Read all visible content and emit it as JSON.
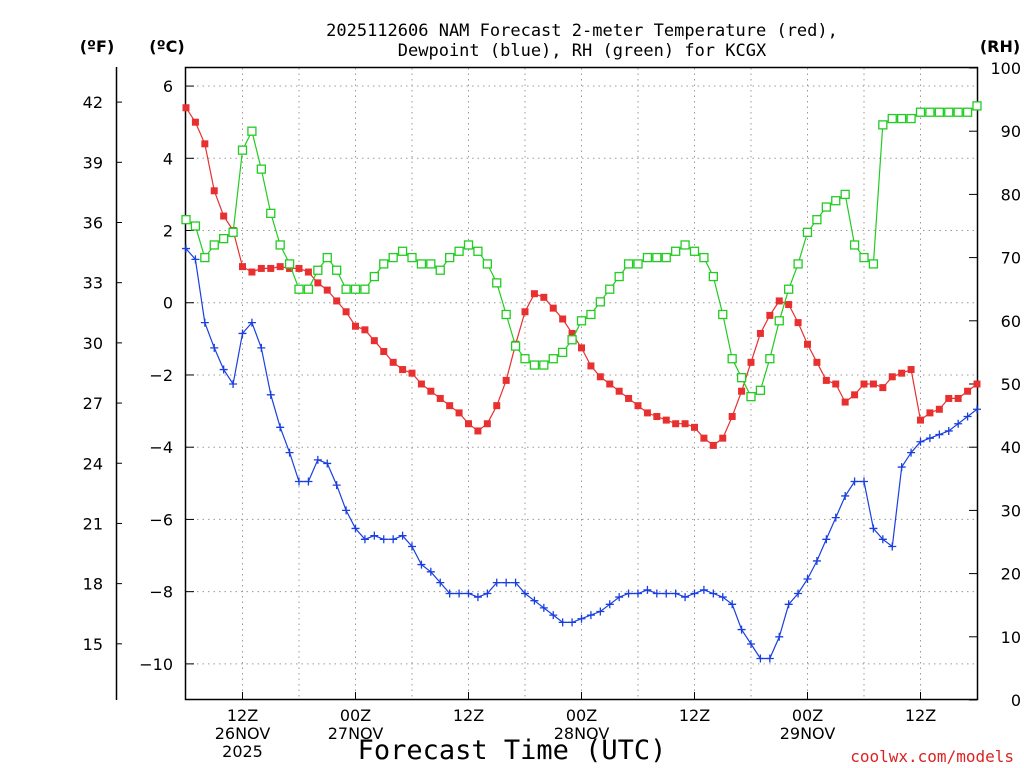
{
  "chart_data": {
    "type": "line",
    "title_line1": "2025112606 NAM Forecast 2-meter Temperature (red),",
    "title_line2": "Dewpoint (blue), RH (green) for KCGX",
    "xlabel": "Forecast Time (UTC)",
    "credit": "coolwx.com/models",
    "units": {
      "fahrenheit": "(ºF)",
      "celsius": "(ºC)",
      "rh": "(RH)"
    },
    "celsius_axis": {
      "ylim": [
        -11,
        6.5
      ],
      "ticks": [
        "6",
        "4",
        "2",
        "0",
        "−2",
        "−4",
        "−6",
        "−8",
        "−10"
      ]
    },
    "fahrenheit_axis": {
      "ticks": [
        "42",
        "39",
        "36",
        "33",
        "30",
        "27",
        "24",
        "21",
        "18",
        "15"
      ]
    },
    "rh_axis": {
      "ylim": [
        0,
        100
      ],
      "ticks": [
        "100",
        "90",
        "80",
        "70",
        "60",
        "50",
        "40",
        "30",
        "20",
        "10",
        "0"
      ]
    },
    "x_axis": {
      "start_hour": 6,
      "end_hour": 90,
      "ticks": [
        {
          "hour": 12,
          "lines": [
            "12Z",
            "26NOV",
            "2025"
          ]
        },
        {
          "hour": 24,
          "lines": [
            "00Z",
            "27NOV"
          ]
        },
        {
          "hour": 36,
          "lines": [
            "12Z"
          ]
        },
        {
          "hour": 48,
          "lines": [
            "00Z",
            "28NOV"
          ]
        },
        {
          "hour": 60,
          "lines": [
            "12Z"
          ]
        },
        {
          "hour": 72,
          "lines": [
            "00Z",
            "29NOV"
          ]
        },
        {
          "hour": 84,
          "lines": [
            "12Z"
          ]
        }
      ]
    },
    "series": [
      {
        "name": "Temperature (°C)",
        "color": "#e83030",
        "marker": "filled-square",
        "axis": "celsius",
        "x": [
          6,
          7,
          8,
          9,
          10,
          11,
          12,
          13,
          14,
          15,
          16,
          17,
          18,
          19,
          20,
          21,
          22,
          23,
          24,
          25,
          26,
          27,
          28,
          29,
          30,
          31,
          32,
          33,
          34,
          35,
          36,
          37,
          38,
          39,
          40,
          41,
          42,
          43,
          44,
          45,
          46,
          47,
          48,
          49,
          50,
          51,
          52,
          53,
          54,
          55,
          56,
          57,
          58,
          59,
          60,
          61,
          62,
          63,
          64,
          65,
          66,
          67,
          68,
          69,
          70,
          71,
          72,
          73,
          74,
          75,
          76,
          77,
          78,
          79,
          80,
          81,
          82,
          83,
          84,
          85,
          86,
          87,
          88,
          89,
          90
        ],
        "values": [
          5.4,
          5.0,
          4.4,
          3.1,
          2.4,
          2.0,
          1.0,
          0.85,
          0.95,
          0.95,
          1.0,
          0.95,
          0.95,
          0.85,
          0.55,
          0.35,
          0.05,
          -0.25,
          -0.65,
          -0.75,
          -1.05,
          -1.35,
          -1.65,
          -1.85,
          -1.95,
          -2.25,
          -2.45,
          -2.65,
          -2.85,
          -3.05,
          -3.35,
          -3.55,
          -3.35,
          -2.85,
          -2.15,
          -1.15,
          -0.25,
          0.25,
          0.15,
          -0.15,
          -0.45,
          -0.85,
          -1.25,
          -1.75,
          -2.05,
          -2.25,
          -2.45,
          -2.65,
          -2.85,
          -3.05,
          -3.15,
          -3.25,
          -3.35,
          -3.35,
          -3.45,
          -3.75,
          -3.95,
          -3.75,
          -3.15,
          -2.45,
          -1.65,
          -0.85,
          -0.35,
          0.05,
          -0.05,
          -0.55,
          -1.15,
          -1.65,
          -2.15,
          -2.25,
          -2.75,
          -2.55,
          -2.25,
          -2.25,
          -2.35,
          -2.05,
          -1.95,
          -1.85,
          -3.25,
          -3.05,
          -2.95,
          -2.65,
          -2.65,
          -2.45,
          -2.25
        ]
      },
      {
        "name": "Dewpoint (°C)",
        "color": "#1a3fe0",
        "marker": "plus",
        "axis": "celsius",
        "x": [
          6,
          7,
          8,
          9,
          10,
          11,
          12,
          13,
          14,
          15,
          16,
          17,
          18,
          19,
          20,
          21,
          22,
          23,
          24,
          25,
          26,
          27,
          28,
          29,
          30,
          31,
          32,
          33,
          34,
          35,
          36,
          37,
          38,
          39,
          40,
          41,
          42,
          43,
          44,
          45,
          46,
          47,
          48,
          49,
          50,
          51,
          52,
          53,
          54,
          55,
          56,
          57,
          58,
          59,
          60,
          61,
          62,
          63,
          64,
          65,
          66,
          67,
          68,
          69,
          70,
          71,
          72,
          73,
          74,
          75,
          76,
          77,
          78,
          79,
          80,
          81,
          82,
          83,
          84,
          85,
          86,
          87,
          88,
          89,
          90
        ],
        "values": [
          1.5,
          1.2,
          -0.55,
          -1.25,
          -1.85,
          -2.25,
          -0.85,
          -0.55,
          -1.25,
          -2.55,
          -3.45,
          -4.15,
          -4.95,
          -4.95,
          -4.35,
          -4.45,
          -5.05,
          -5.75,
          -6.25,
          -6.55,
          -6.45,
          -6.55,
          -6.55,
          -6.45,
          -6.75,
          -7.25,
          -7.45,
          -7.75,
          -8.05,
          -8.05,
          -8.05,
          -8.15,
          -8.05,
          -7.75,
          -7.75,
          -7.75,
          -8.05,
          -8.25,
          -8.45,
          -8.65,
          -8.85,
          -8.85,
          -8.75,
          -8.65,
          -8.55,
          -8.35,
          -8.15,
          -8.05,
          -8.05,
          -7.95,
          -8.05,
          -8.05,
          -8.05,
          -8.15,
          -8.05,
          -7.95,
          -8.05,
          -8.15,
          -8.35,
          -9.05,
          -9.45,
          -9.85,
          -9.85,
          -9.25,
          -8.35,
          -8.05,
          -7.65,
          -7.15,
          -6.55,
          -5.95,
          -5.35,
          -4.95,
          -4.95,
          -6.25,
          -6.55,
          -6.75,
          -4.55,
          -4.15,
          -3.85,
          -3.75,
          -3.65,
          -3.55,
          -3.35,
          -3.15,
          -2.95
        ]
      },
      {
        "name": "RH (%)",
        "color": "#22cc22",
        "marker": "open-square",
        "axis": "rh",
        "x": [
          6,
          7,
          8,
          9,
          10,
          11,
          12,
          13,
          14,
          15,
          16,
          17,
          18,
          19,
          20,
          21,
          22,
          23,
          24,
          25,
          26,
          27,
          28,
          29,
          30,
          31,
          32,
          33,
          34,
          35,
          36,
          37,
          38,
          39,
          40,
          41,
          42,
          43,
          44,
          45,
          46,
          47,
          48,
          49,
          50,
          51,
          52,
          53,
          54,
          55,
          56,
          57,
          58,
          59,
          60,
          61,
          62,
          63,
          64,
          65,
          66,
          67,
          68,
          69,
          70,
          71,
          72,
          73,
          74,
          75,
          76,
          77,
          78,
          79,
          80,
          81,
          82,
          83,
          84,
          85,
          86,
          87,
          88,
          89,
          90
        ],
        "values": [
          76,
          75,
          70,
          72,
          73,
          74,
          87,
          90,
          84,
          77,
          72,
          69,
          65,
          65,
          68,
          70,
          68,
          65,
          65,
          65,
          67,
          69,
          70,
          71,
          70,
          69,
          69,
          68,
          70,
          71,
          72,
          71,
          69,
          66,
          61,
          56,
          54,
          53,
          53,
          54,
          55,
          57,
          60,
          61,
          63,
          65,
          67,
          69,
          69,
          70,
          70,
          70,
          71,
          72,
          71,
          70,
          67,
          61,
          54,
          51,
          48,
          49,
          54,
          60,
          65,
          69,
          74,
          76,
          78,
          79,
          80,
          72,
          70,
          69,
          91,
          92,
          92,
          92,
          93,
          93,
          93,
          93,
          93,
          93,
          94
        ]
      }
    ]
  }
}
